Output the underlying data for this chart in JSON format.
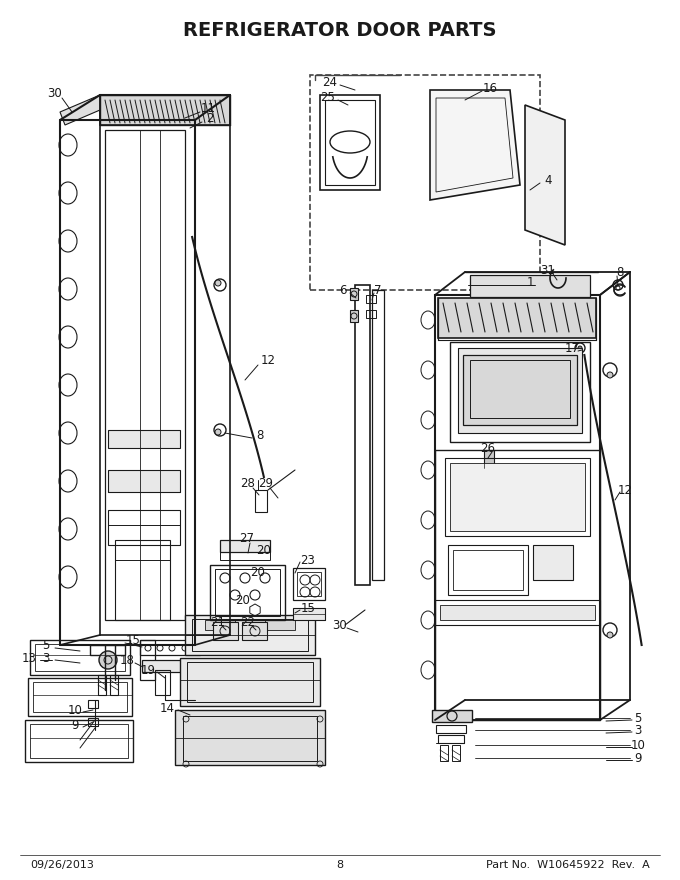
{
  "title": "REFRIGERATOR DOOR PARTS",
  "title_fontsize": 14,
  "title_fontweight": "bold",
  "footer_left": "09/26/2013",
  "footer_center": "8",
  "footer_right": "Part No.  W10645922  Rev.  A",
  "footer_fontsize": 8,
  "bg_color": "#ffffff",
  "line_color": "#1a1a1a",
  "fig_width": 6.8,
  "fig_height": 8.8,
  "dpi": 100
}
